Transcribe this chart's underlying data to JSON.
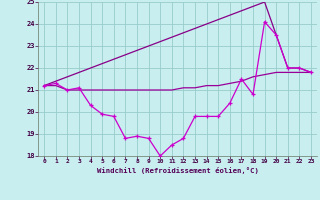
{
  "xlabel": "Windchill (Refroidissement éolien,°C)",
  "xlim": [
    -0.5,
    23.5
  ],
  "ylim": [
    18,
    25
  ],
  "yticks": [
    18,
    19,
    20,
    21,
    22,
    23,
    24,
    25
  ],
  "xticks": [
    0,
    1,
    2,
    3,
    4,
    5,
    6,
    7,
    8,
    9,
    10,
    11,
    12,
    13,
    14,
    15,
    16,
    17,
    18,
    19,
    20,
    21,
    22,
    23
  ],
  "background_color": "#c8eef0",
  "grid_color": "#99cccc",
  "line_color_main": "#990099",
  "line_color_dip": "#cc00cc",
  "line_color_straight": "#880088",
  "curve_flat_x": [
    0,
    1,
    2,
    3,
    4,
    5,
    6,
    7,
    8,
    9,
    10,
    11,
    12,
    13,
    14,
    15,
    16,
    17,
    18,
    19,
    20,
    21,
    22,
    23
  ],
  "curve_flat_y": [
    21.2,
    21.2,
    21.0,
    21.0,
    21.0,
    21.0,
    21.0,
    21.0,
    21.0,
    21.0,
    21.0,
    21.0,
    21.1,
    21.1,
    21.2,
    21.2,
    21.3,
    21.4,
    21.6,
    21.7,
    21.8,
    21.8,
    21.8,
    21.8
  ],
  "curve_dip_x": [
    0,
    1,
    2,
    3,
    4,
    5,
    6,
    7,
    8,
    9,
    10,
    11,
    12,
    13,
    14,
    15,
    16,
    17,
    18,
    19,
    20,
    21,
    22,
    23
  ],
  "curve_dip_y": [
    21.2,
    21.3,
    21.0,
    21.1,
    20.3,
    19.9,
    19.8,
    18.8,
    18.9,
    18.8,
    18.0,
    18.5,
    18.8,
    19.8,
    19.8,
    19.8,
    20.4,
    21.5,
    20.8,
    24.1,
    23.5,
    22.0,
    22.0,
    21.8
  ],
  "curve_straight_x": [
    0,
    19,
    20,
    21,
    22,
    23
  ],
  "curve_straight_y": [
    21.2,
    25.0,
    23.5,
    22.0,
    22.0,
    21.8
  ]
}
